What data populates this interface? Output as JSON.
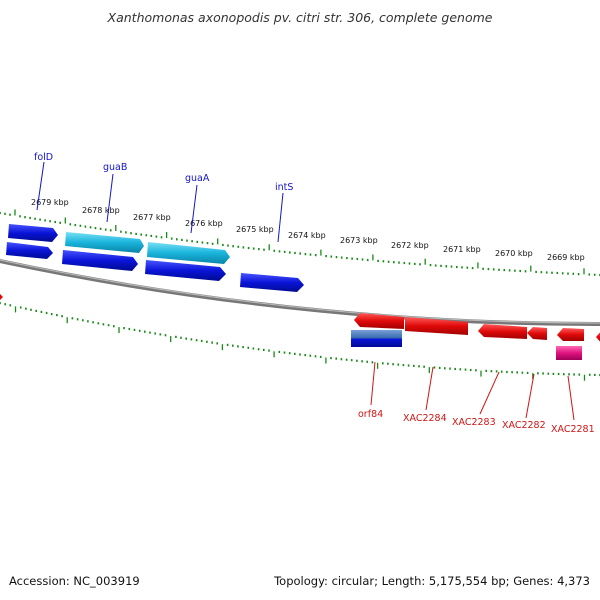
{
  "title": "Xanthomonas axonopodis pv. citri str. 306, complete genome",
  "footer": {
    "accession": "Accession: NC_003919",
    "summary": "Topology: circular; Length: 5,175,554 bp; Genes: 4,373"
  },
  "colors": {
    "forward_gene": "#0a14d8",
    "forward_highlight": "#1ab4dc",
    "reverse_gene": "#e00a0a",
    "reverse_other": "#e0137f",
    "orf84_gene": "#3a6db0",
    "tick": "#1a8a1a",
    "backbone": "#8a8a8a",
    "forward_label": "#1414c8",
    "reverse_label": "#d01414"
  },
  "scale": {
    "unit": "kbp",
    "labels": [
      "2679 kbp",
      "2678 kbp",
      "2677 kbp",
      "2676 kbp",
      "2675 kbp",
      "2674 kbp",
      "2673 kbp",
      "2672 kbp",
      "2671 kbp",
      "2670 kbp",
      "2669 kbp"
    ]
  },
  "genes": {
    "forward": [
      {
        "name": "folD",
        "strand": "+"
      },
      {
        "name": "guaB",
        "strand": "+"
      },
      {
        "name": "guaA",
        "strand": "+"
      },
      {
        "name": "intS",
        "strand": "+"
      }
    ],
    "reverse": [
      {
        "name": "orf84",
        "strand": "-"
      },
      {
        "name": "XAC2284",
        "strand": "-"
      },
      {
        "name": "XAC2283",
        "strand": "-"
      },
      {
        "name": "XAC2282",
        "strand": "-"
      },
      {
        "name": "XAC2281",
        "strand": "-"
      }
    ]
  }
}
